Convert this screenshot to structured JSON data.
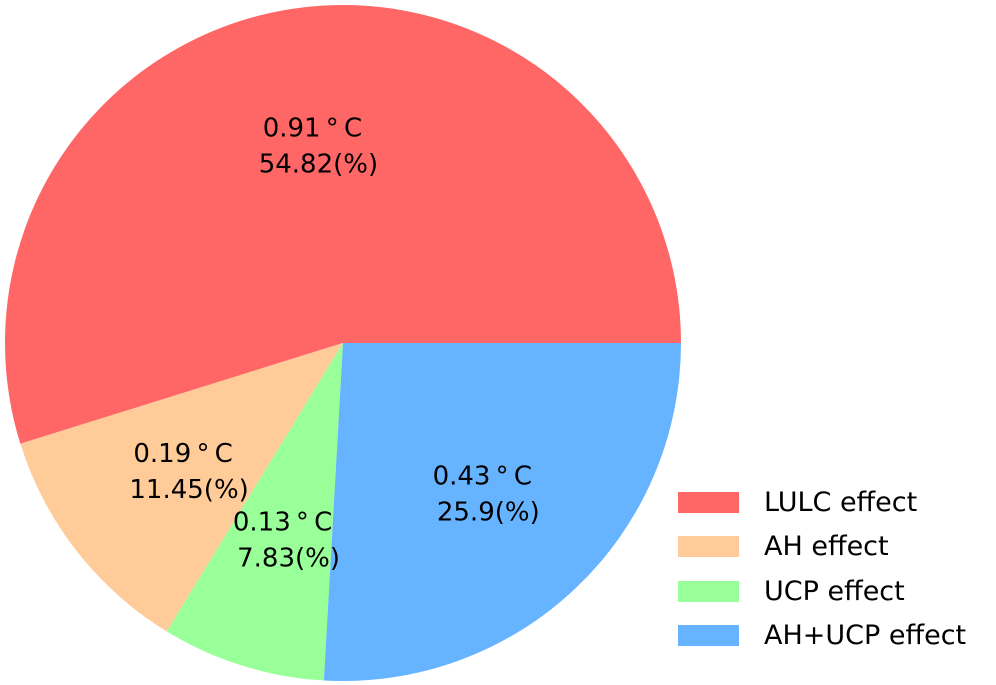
{
  "chart_data": {
    "type": "pie",
    "slices": [
      {
        "name": "LULC effect",
        "value": 54.82,
        "temp_label": "0.91 ° C",
        "pct_label": "54.82(%)",
        "color": "#ff6666"
      },
      {
        "name": "AH effect",
        "value": 11.45,
        "temp_label": "0.19 ° C",
        "pct_label": "11.45(%)",
        "color": "#ffcc99"
      },
      {
        "name": "UCP effect",
        "value": 7.83,
        "temp_label": "0.13 ° C",
        "pct_label": "7.83(%)",
        "color": "#99ff99"
      },
      {
        "name": "AH+UCP effect",
        "value": 25.9,
        "temp_label": "0.43 ° C",
        "pct_label": "25.9(%)",
        "color": "#66b3ff"
      }
    ],
    "start_angle_deg": 0,
    "direction": "counterclockwise",
    "legend_position": "lower-right"
  },
  "legend": {
    "items": [
      {
        "label": "LULC effect",
        "color": "#ff6666"
      },
      {
        "label": "AH effect",
        "color": "#ffcc99"
      },
      {
        "label": "UCP effect",
        "color": "#99ff99"
      },
      {
        "label": "AH+UCP effect",
        "color": "#66b3ff"
      }
    ]
  }
}
